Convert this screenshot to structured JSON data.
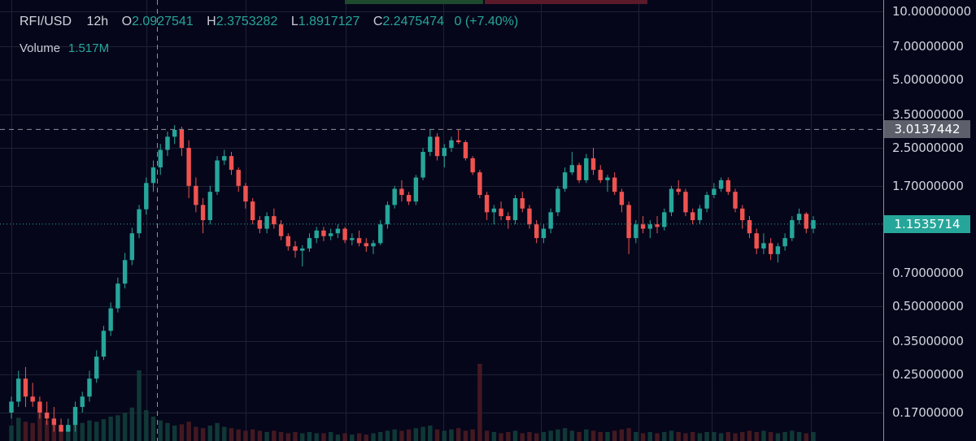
{
  "header": {
    "symbol": "RFI/USD",
    "interval": "12h",
    "o_label": "O",
    "open": "2.0927541",
    "h_label": "H",
    "high": "2.3753282",
    "l_label": "L",
    "low": "1.8917127",
    "c_label": "C",
    "close": "2.2475474",
    "change": "0 (+7.40%)"
  },
  "volume": {
    "label": "Volume",
    "value": "1.517M"
  },
  "price_axis": {
    "ticks": [
      "10.00000000",
      "7.00000000",
      "5.00000000",
      "3.50000000",
      "2.50000000",
      "1.70000000",
      "0.70000000",
      "0.50000000",
      "0.35000000",
      "0.25000000",
      "0.17000000"
    ],
    "crosshair_label": "3.0137442",
    "last_price_label": "1.1535714"
  },
  "colors": {
    "background": "#06061a",
    "up": "#26a69a",
    "down": "#ef5350",
    "grid": "#1e2133",
    "crosshair": "#8f919a"
  },
  "chart_data": {
    "type": "candlestick",
    "y_scale": "log",
    "ylim": [
      0.14,
      10.5
    ],
    "grid": true,
    "crosshair_price": 3.0137442,
    "last_price": 1.1535714,
    "ohlc": [
      [
        0.17,
        0.2,
        0.16,
        0.19
      ],
      [
        0.19,
        0.26,
        0.18,
        0.24
      ],
      [
        0.24,
        0.27,
        0.18,
        0.2
      ],
      [
        0.2,
        0.23,
        0.18,
        0.19
      ],
      [
        0.19,
        0.2,
        0.16,
        0.17
      ],
      [
        0.17,
        0.19,
        0.15,
        0.16
      ],
      [
        0.16,
        0.18,
        0.14,
        0.15
      ],
      [
        0.15,
        0.16,
        0.14,
        0.14
      ],
      [
        0.14,
        0.16,
        0.14,
        0.15
      ],
      [
        0.15,
        0.19,
        0.14,
        0.18
      ],
      [
        0.18,
        0.21,
        0.17,
        0.2
      ],
      [
        0.2,
        0.26,
        0.19,
        0.24
      ],
      [
        0.24,
        0.32,
        0.23,
        0.3
      ],
      [
        0.3,
        0.41,
        0.29,
        0.39
      ],
      [
        0.39,
        0.52,
        0.37,
        0.49
      ],
      [
        0.49,
        0.67,
        0.47,
        0.63
      ],
      [
        0.63,
        0.86,
        0.6,
        0.8
      ],
      [
        0.8,
        1.11,
        0.76,
        1.05
      ],
      [
        1.05,
        1.4,
        1.0,
        1.34
      ],
      [
        1.34,
        1.85,
        1.27,
        1.75
      ],
      [
        1.75,
        2.2,
        1.6,
        2.05
      ],
      [
        2.05,
        2.6,
        1.9,
        2.45
      ],
      [
        2.45,
        2.95,
        2.3,
        2.8
      ],
      [
        2.8,
        3.15,
        2.6,
        3.0
      ],
      [
        3.0,
        3.1,
        2.3,
        2.5
      ],
      [
        2.5,
        2.7,
        1.5,
        1.7
      ],
      [
        1.7,
        1.85,
        1.3,
        1.4
      ],
      [
        1.4,
        1.5,
        1.05,
        1.2
      ],
      [
        1.2,
        1.7,
        1.15,
        1.6
      ],
      [
        1.6,
        2.3,
        1.55,
        2.2
      ],
      [
        2.2,
        2.45,
        2.1,
        2.3
      ],
      [
        2.3,
        2.4,
        1.9,
        2.0
      ],
      [
        2.0,
        2.05,
        1.6,
        1.7
      ],
      [
        1.7,
        1.75,
        1.35,
        1.45
      ],
      [
        1.45,
        1.5,
        1.15,
        1.2
      ],
      [
        1.2,
        1.25,
        1.05,
        1.1
      ],
      [
        1.1,
        1.3,
        1.05,
        1.25
      ],
      [
        1.25,
        1.35,
        1.1,
        1.15
      ],
      [
        1.15,
        1.2,
        0.98,
        1.02
      ],
      [
        1.02,
        1.05,
        0.88,
        0.92
      ],
      [
        0.92,
        0.97,
        0.82,
        0.88
      ],
      [
        0.88,
        0.93,
        0.75,
        0.9
      ],
      [
        0.9,
        1.05,
        0.87,
        1.0
      ],
      [
        1.0,
        1.12,
        0.95,
        1.08
      ],
      [
        1.08,
        1.12,
        0.97,
        1.02
      ],
      [
        1.02,
        1.1,
        0.98,
        1.05
      ],
      [
        1.05,
        1.15,
        1.0,
        1.1
      ],
      [
        1.1,
        1.12,
        0.95,
        0.98
      ],
      [
        0.98,
        1.05,
        0.93,
        1.0
      ],
      [
        1.0,
        1.08,
        0.92,
        0.95
      ],
      [
        0.95,
        1.0,
        0.87,
        0.92
      ],
      [
        0.92,
        0.98,
        0.85,
        0.95
      ],
      [
        0.95,
        1.2,
        0.93,
        1.15
      ],
      [
        1.15,
        1.45,
        1.1,
        1.4
      ],
      [
        1.4,
        1.7,
        1.35,
        1.65
      ],
      [
        1.65,
        1.8,
        1.45,
        1.55
      ],
      [
        1.55,
        1.6,
        1.4,
        1.45
      ],
      [
        1.45,
        1.9,
        1.4,
        1.85
      ],
      [
        1.85,
        2.5,
        1.8,
        2.4
      ],
      [
        2.4,
        3.0,
        2.3,
        2.8
      ],
      [
        2.8,
        2.9,
        2.2,
        2.3
      ],
      [
        2.3,
        2.6,
        2.05,
        2.5
      ],
      [
        2.5,
        2.8,
        2.4,
        2.7
      ],
      [
        2.7,
        3.0,
        2.6,
        2.65
      ],
      [
        2.65,
        2.7,
        2.2,
        2.25
      ],
      [
        2.25,
        2.3,
        1.9,
        1.95
      ],
      [
        1.95,
        2.0,
        1.5,
        1.55
      ],
      [
        1.55,
        1.6,
        1.2,
        1.3
      ],
      [
        1.3,
        1.4,
        1.15,
        1.35
      ],
      [
        1.35,
        1.45,
        1.2,
        1.25
      ],
      [
        1.25,
        1.3,
        1.1,
        1.2
      ],
      [
        1.2,
        1.55,
        1.15,
        1.5
      ],
      [
        1.5,
        1.6,
        1.3,
        1.35
      ],
      [
        1.35,
        1.4,
        1.1,
        1.15
      ],
      [
        1.15,
        1.2,
        0.95,
        1.0
      ],
      [
        1.0,
        1.15,
        0.95,
        1.1
      ],
      [
        1.1,
        1.35,
        1.05,
        1.3
      ],
      [
        1.3,
        1.7,
        1.25,
        1.65
      ],
      [
        1.65,
        2.05,
        1.6,
        1.95
      ],
      [
        1.95,
        2.4,
        1.9,
        2.1
      ],
      [
        2.1,
        2.15,
        1.75,
        1.8
      ],
      [
        1.8,
        2.35,
        1.75,
        2.25
      ],
      [
        2.25,
        2.5,
        1.9,
        2.0
      ],
      [
        2.0,
        2.1,
        1.75,
        1.8
      ],
      [
        1.8,
        1.9,
        1.6,
        1.85
      ],
      [
        1.85,
        1.95,
        1.55,
        1.6
      ],
      [
        1.6,
        1.65,
        1.3,
        1.4
      ],
      [
        1.4,
        1.45,
        0.85,
        1.0
      ],
      [
        1.0,
        1.2,
        0.95,
        1.15
      ],
      [
        1.15,
        1.25,
        1.05,
        1.1
      ],
      [
        1.1,
        1.2,
        1.0,
        1.15
      ],
      [
        1.15,
        1.25,
        1.05,
        1.12
      ],
      [
        1.12,
        1.35,
        1.08,
        1.3
      ],
      [
        1.3,
        1.7,
        1.25,
        1.65
      ],
      [
        1.65,
        1.8,
        1.55,
        1.6
      ],
      [
        1.6,
        1.65,
        1.25,
        1.3
      ],
      [
        1.3,
        1.35,
        1.15,
        1.2
      ],
      [
        1.2,
        1.4,
        1.15,
        1.35
      ],
      [
        1.35,
        1.6,
        1.3,
        1.55
      ],
      [
        1.55,
        1.75,
        1.5,
        1.65
      ],
      [
        1.65,
        1.85,
        1.6,
        1.8
      ],
      [
        1.8,
        1.85,
        1.55,
        1.6
      ],
      [
        1.6,
        1.65,
        1.3,
        1.35
      ],
      [
        1.35,
        1.4,
        1.1,
        1.2
      ],
      [
        1.2,
        1.25,
        1.0,
        1.05
      ],
      [
        1.05,
        1.1,
        0.85,
        0.9
      ],
      [
        0.9,
        1.05,
        0.85,
        0.95
      ],
      [
        0.95,
        1.0,
        0.8,
        0.85
      ],
      [
        0.85,
        0.95,
        0.78,
        0.92
      ],
      [
        0.92,
        1.05,
        0.88,
        1.0
      ],
      [
        1.0,
        1.25,
        0.97,
        1.2
      ],
      [
        1.2,
        1.35,
        1.15,
        1.28
      ],
      [
        1.28,
        1.3,
        1.05,
        1.1
      ],
      [
        1.1,
        1.25,
        1.05,
        1.2
      ]
    ],
    "volume": [
      1.2,
      1.8,
      1.5,
      1.4,
      2.8,
      1.6,
      1.3,
      1.0,
      1.1,
      1.3,
      1.4,
      1.6,
      1.5,
      1.7,
      1.9,
      2.0,
      2.2,
      2.6,
      5.5,
      2.4,
      1.9,
      1.6,
      1.4,
      1.2,
      1.3,
      1.5,
      1.1,
      1.0,
      1.2,
      1.4,
      1.1,
      1.0,
      0.9,
      0.8,
      0.9,
      0.8,
      0.7,
      0.8,
      0.7,
      0.6,
      0.7,
      0.6,
      0.7,
      0.6,
      0.6,
      0.7,
      0.5,
      0.6,
      0.5,
      0.6,
      0.5,
      0.6,
      0.7,
      0.8,
      0.9,
      0.8,
      0.9,
      1.0,
      1.1,
      1.2,
      0.9,
      0.8,
      0.9,
      1.0,
      0.8,
      0.9,
      6.0,
      0.8,
      0.7,
      0.6,
      0.7,
      0.8,
      0.6,
      0.7,
      0.6,
      0.7,
      0.8,
      0.9,
      1.0,
      0.8,
      0.7,
      0.9,
      0.8,
      0.7,
      0.7,
      0.8,
      0.9,
      1.0,
      0.7,
      0.6,
      0.7,
      0.6,
      0.7,
      0.8,
      0.7,
      0.6,
      0.7,
      0.6,
      0.7,
      0.7,
      0.6,
      0.7,
      0.6,
      0.7,
      0.8,
      0.7,
      0.8,
      0.7,
      0.6,
      0.7,
      0.8,
      0.7,
      0.6,
      0.7
    ]
  }
}
